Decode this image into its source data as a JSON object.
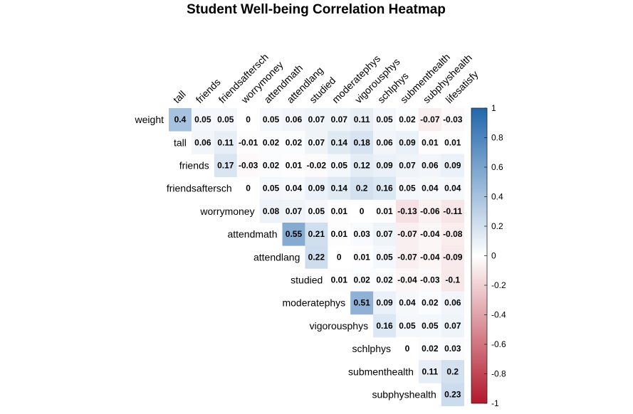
{
  "chart_data": {
    "type": "heatmap",
    "title": "Student Well-being Correlation Heatmap",
    "rows": [
      "weight",
      "tall",
      "friends",
      "friendsaftersch",
      "worrymoney",
      "attendmath",
      "attendlang",
      "studied",
      "moderatephys",
      "vigorousphys",
      "schlphys",
      "submenthealth",
      "subphyshealth"
    ],
    "columns": [
      "tall",
      "friends",
      "friendsaftersch",
      "worrymoney",
      "attendmath",
      "attendlang",
      "studied",
      "moderatephys",
      "vigorousphys",
      "schlphys",
      "submenthealth",
      "subphyshealth",
      "lifesatisfy"
    ],
    "values": [
      [
        0.4,
        0.05,
        0.05,
        0,
        0.05,
        0.06,
        0.07,
        0.07,
        0.11,
        0.05,
        0.02,
        -0.07,
        -0.03
      ],
      [
        null,
        0.06,
        0.11,
        -0.01,
        0.02,
        0.02,
        0.07,
        0.14,
        0.18,
        0.06,
        0.09,
        0.01,
        0.01
      ],
      [
        null,
        null,
        0.17,
        -0.03,
        0.02,
        0.01,
        -0.02,
        0.05,
        0.12,
        0.09,
        0.07,
        0.06,
        0.09
      ],
      [
        null,
        null,
        null,
        0,
        0.05,
        0.04,
        0.09,
        0.14,
        0.2,
        0.16,
        0.05,
        0.04,
        0.04
      ],
      [
        null,
        null,
        null,
        null,
        0.08,
        0.07,
        0.05,
        0.01,
        0,
        0.01,
        -0.13,
        -0.06,
        -0.11
      ],
      [
        null,
        null,
        null,
        null,
        null,
        0.55,
        0.21,
        0.01,
        0.03,
        0.07,
        -0.07,
        -0.04,
        -0.08
      ],
      [
        null,
        null,
        null,
        null,
        null,
        null,
        0.22,
        0,
        0.01,
        0.05,
        -0.07,
        -0.04,
        -0.09
      ],
      [
        null,
        null,
        null,
        null,
        null,
        null,
        null,
        0.01,
        0.02,
        0.02,
        -0.04,
        -0.03,
        -0.1
      ],
      [
        null,
        null,
        null,
        null,
        null,
        null,
        null,
        null,
        0.51,
        0.09,
        0.04,
        0.02,
        0.06
      ],
      [
        null,
        null,
        null,
        null,
        null,
        null,
        null,
        null,
        null,
        0.16,
        0.05,
        0.05,
        0.07
      ],
      [
        null,
        null,
        null,
        null,
        null,
        null,
        null,
        null,
        null,
        null,
        0,
        0.02,
        0.03
      ],
      [
        null,
        null,
        null,
        null,
        null,
        null,
        null,
        null,
        null,
        null,
        null,
        0.11,
        0.2
      ],
      [
        null,
        null,
        null,
        null,
        null,
        null,
        null,
        null,
        null,
        null,
        null,
        null,
        0.23
      ]
    ],
    "colorbar": {
      "range": [
        -1,
        1
      ],
      "ticks": [
        "1",
        "0.8",
        "0.6",
        "0.4",
        "0.2",
        "0",
        "-0.2",
        "-0.4",
        "-0.6",
        "-0.8",
        "-1"
      ],
      "low_color": "#B2182B",
      "mid_color": "#FFFFFF",
      "high_color": "#2166AC"
    },
    "legend": "right"
  }
}
